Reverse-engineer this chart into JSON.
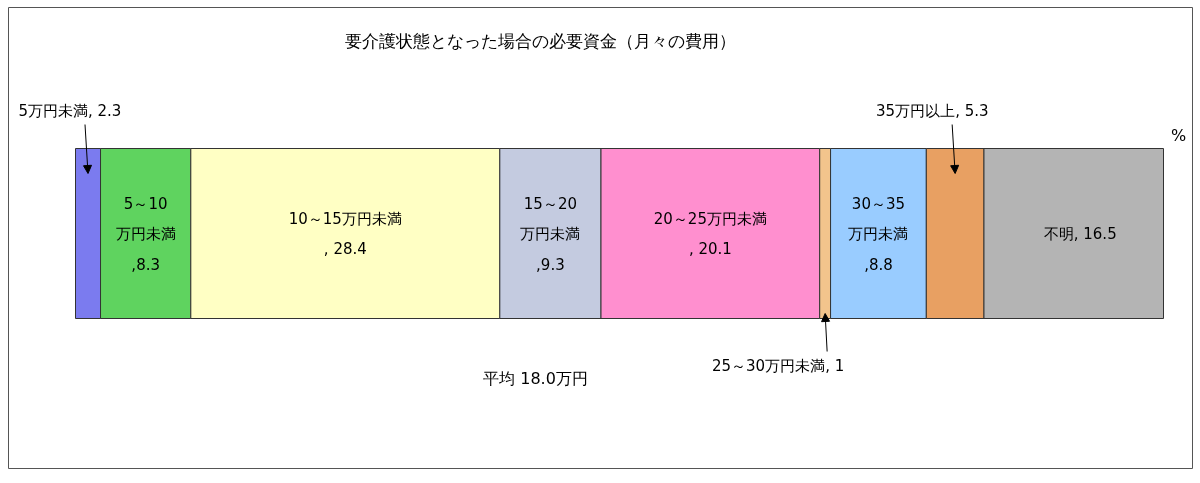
{
  "chart_data": {
    "type": "bar",
    "orientation": "horizontal",
    "stacked": true,
    "title": "要介護状態となった場合の必要資金（月々の費用）",
    "annotations": [
      "%",
      "平均 18.0万円"
    ],
    "categories": [
      null
    ],
    "series": [
      {
        "name": "5万円未満",
        "color": "#7b7bef",
        "values": [
          2.3
        ],
        "value_labels": [
          ", 2.3"
        ]
      },
      {
        "name": "5～10万円未満",
        "color": "#5fd35f",
        "values": [
          8.3
        ],
        "value_labels": [
          ",8.3"
        ]
      },
      {
        "name": "10～15万円未満",
        "color": "#ffffc4",
        "values": [
          28.4
        ],
        "value_labels": [
          ", 28.4"
        ]
      },
      {
        "name": "15～20万円未満",
        "color": "#c4cbe0",
        "values": [
          9.3
        ],
        "value_labels": [
          ",9.3"
        ]
      },
      {
        "name": "20～25万円未満",
        "color": "#ff8fcf",
        "values": [
          20.1
        ],
        "value_labels": [
          ", 20.1"
        ]
      },
      {
        "name": "25～30万円未満",
        "color": "#f2c48c",
        "values": [
          1
        ],
        "value_labels": [
          ", 1"
        ]
      },
      {
        "name": "30～35万円未満",
        "color": "#99ccff",
        "values": [
          8.8
        ],
        "value_labels": [
          ",8.8"
        ]
      },
      {
        "name": "35万円以上",
        "color": "#e8a062",
        "values": [
          5.3
        ],
        "value_labels": [
          ", 5.3"
        ]
      },
      {
        "name": "不明",
        "color": "#b4b4b4",
        "values": [
          16.5
        ],
        "value_labels": [
          ", 16.5"
        ]
      }
    ]
  }
}
